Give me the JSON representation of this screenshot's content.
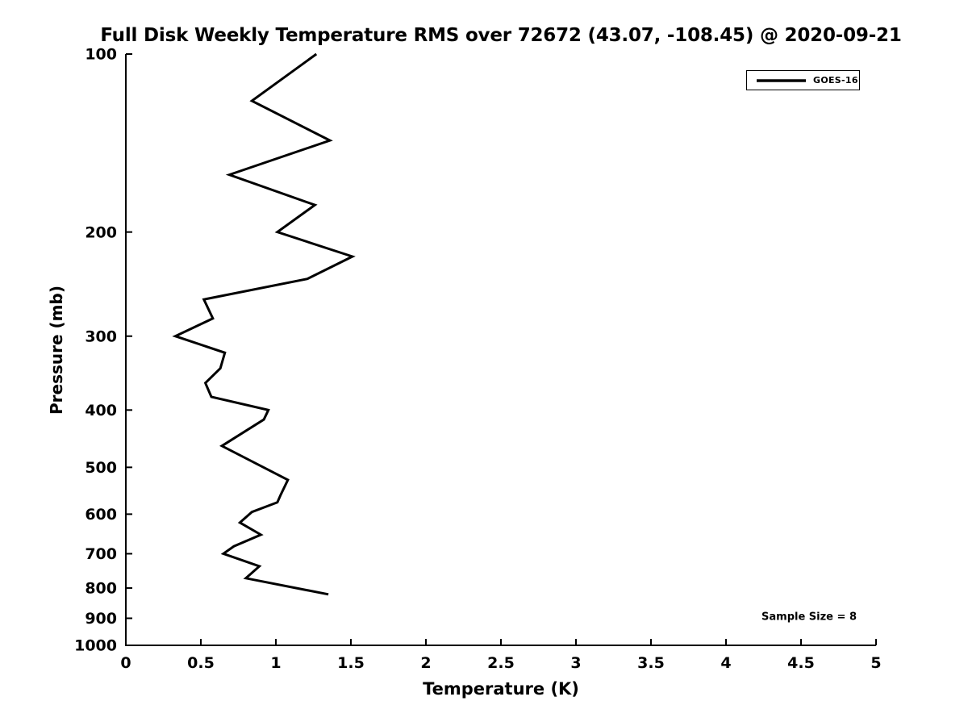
{
  "title": "Full Disk Weekly Temperature RMS over 72672 (43.07, -108.45) @ 2020-09-21",
  "xlabel": "Temperature (K)",
  "ylabel": "Pressure (mb)",
  "legend": {
    "label": "GOES-16"
  },
  "annotation": "Sample Size = 8",
  "colors": {
    "background": "#ffffff",
    "axis": "#000000",
    "text": "#000000",
    "series_line": "#000000"
  },
  "chart_data": {
    "type": "line",
    "title": "Full Disk Weekly Temperature RMS over 72672 (43.07, -108.45) @ 2020-09-21",
    "xlabel": "Temperature (K)",
    "ylabel": "Pressure (mb)",
    "xlim": [
      0,
      5
    ],
    "ylim": [
      100,
      1000
    ],
    "x_ticks": [
      0,
      0.5,
      1,
      1.5,
      2,
      2.5,
      3,
      3.5,
      4,
      4.5,
      5
    ],
    "y_ticks": [
      100,
      200,
      300,
      400,
      500,
      600,
      700,
      800,
      900,
      1000
    ],
    "y_scale": "log",
    "y_inverted": true,
    "grid": false,
    "legend_entries": [
      "GOES-16"
    ],
    "legend_position": "upper-right",
    "annotation": "Sample Size = 8",
    "series": [
      {
        "name": "GOES-16",
        "temperature_K": [
          1.27,
          0.84,
          1.36,
          0.69,
          1.26,
          1.01,
          1.51,
          1.21,
          0.52,
          0.58,
          0.33,
          0.66,
          0.63,
          0.53,
          0.57,
          0.95,
          0.92,
          0.64,
          1.08,
          1.03,
          1.01,
          0.84,
          0.76,
          0.9,
          0.72,
          0.65,
          0.89,
          0.8,
          1.35
        ],
        "pressure_mb": [
          100,
          120,
          140,
          160,
          180,
          200,
          220,
          240,
          260,
          280,
          300,
          320,
          340,
          360,
          380,
          400,
          415,
          460,
          525,
          558,
          573,
          595,
          620,
          650,
          680,
          700,
          735,
          770,
          820
        ]
      }
    ]
  }
}
